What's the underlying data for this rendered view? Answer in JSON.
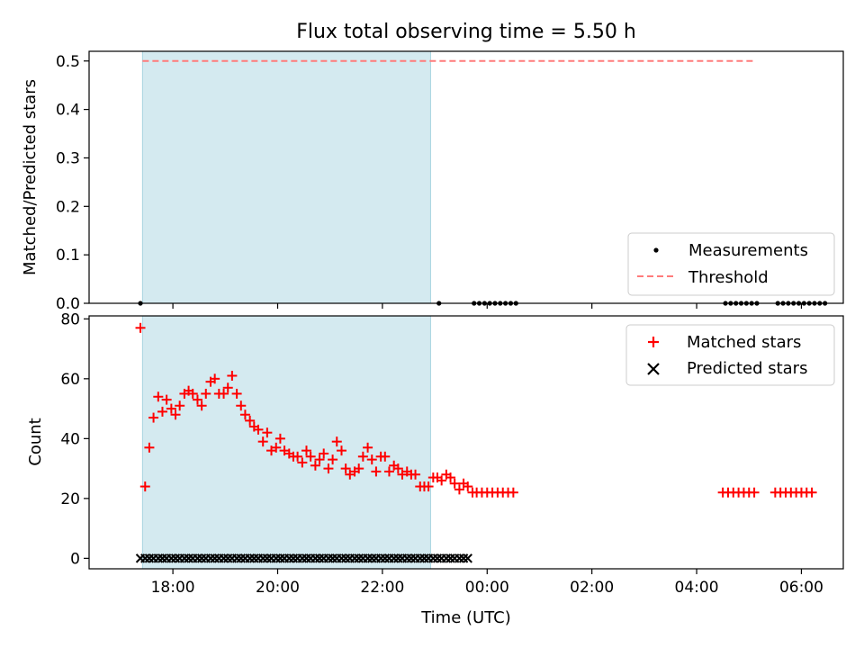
{
  "chart_data": [
    {
      "type": "scatter",
      "title": "Flux total observing time = 5.50 h",
      "xlabel": "",
      "ylabel": "Matched/Predicted stars",
      "xlim": [
        16.4,
        30.8
      ],
      "ylim": [
        0.0,
        0.52
      ],
      "yticks": [
        0.0,
        0.1,
        0.2,
        0.3,
        0.4,
        0.5
      ],
      "ytick_labels": [
        "0.0",
        "0.1",
        "0.2",
        "0.3",
        "0.4",
        "0.5"
      ],
      "xticks": [
        18,
        20,
        22,
        24,
        26,
        28,
        30
      ],
      "shaded_span": [
        17.42,
        22.92
      ],
      "threshold": {
        "value": 0.5,
        "x_range": [
          17.42,
          29.12
        ],
        "color": "#ff7b7b"
      },
      "legend": {
        "position": "lower-right",
        "entries": [
          {
            "label": "Measurements",
            "marker": "dot",
            "color": "#000000"
          },
          {
            "label": "Threshold",
            "marker": "dashed-line",
            "color": "#ff7b7b"
          }
        ]
      },
      "series": [
        {
          "name": "Measurements",
          "marker": "dot",
          "color": "#000000",
          "x": [
            17.38,
            23.08,
            23.75,
            23.85,
            23.95,
            24.05,
            24.15,
            24.25,
            24.35,
            24.45,
            24.55,
            28.55,
            28.65,
            28.75,
            28.85,
            28.95,
            29.05,
            29.15,
            29.55,
            29.65,
            29.75,
            29.85,
            29.95,
            30.05,
            30.15,
            30.25,
            30.35,
            30.45
          ],
          "y": [
            0,
            0,
            0,
            0,
            0,
            0,
            0,
            0,
            0,
            0,
            0,
            0,
            0,
            0,
            0,
            0,
            0,
            0,
            0,
            0,
            0,
            0,
            0,
            0,
            0,
            0,
            0,
            0
          ]
        }
      ]
    },
    {
      "type": "scatter",
      "xlabel": "Time (UTC)",
      "ylabel": "Count",
      "xlim": [
        16.4,
        30.8
      ],
      "ylim": [
        -3.5,
        81
      ],
      "yticks": [
        0,
        20,
        40,
        60,
        80
      ],
      "ytick_labels": [
        "0",
        "20",
        "40",
        "60",
        "80"
      ],
      "xticks": [
        18,
        20,
        22,
        24,
        26,
        28,
        30
      ],
      "xtick_labels": [
        "18:00",
        "20:00",
        "22:00",
        "00:00",
        "02:00",
        "04:00",
        "06:00"
      ],
      "shaded_span": [
        17.42,
        22.92
      ],
      "legend": {
        "position": "top-right",
        "entries": [
          {
            "label": "Matched stars",
            "marker": "plus",
            "color": "#ff0000"
          },
          {
            "label": "Predicted stars",
            "marker": "x",
            "color": "#000000"
          }
        ]
      },
      "series": [
        {
          "name": "Matched stars",
          "marker": "plus",
          "color": "#ff0000",
          "x": [
            17.38,
            17.47,
            17.55,
            17.63,
            17.72,
            17.8,
            17.88,
            17.97,
            18.05,
            18.13,
            18.22,
            18.3,
            18.38,
            18.47,
            18.55,
            18.63,
            18.72,
            18.8,
            18.88,
            18.97,
            19.05,
            19.13,
            19.22,
            19.3,
            19.38,
            19.47,
            19.55,
            19.63,
            19.72,
            19.8,
            19.88,
            19.97,
            20.05,
            20.13,
            20.22,
            20.3,
            20.38,
            20.47,
            20.55,
            20.63,
            20.72,
            20.8,
            20.88,
            20.97,
            21.05,
            21.13,
            21.22,
            21.3,
            21.38,
            21.47,
            21.55,
            21.63,
            21.72,
            21.8,
            21.88,
            21.97,
            22.05,
            22.13,
            22.22,
            22.3,
            22.38,
            22.47,
            22.55,
            22.63,
            22.72,
            22.8,
            22.88,
            22.97,
            23.05,
            23.13,
            23.22,
            23.3,
            23.38,
            23.47,
            23.55,
            23.63,
            23.72,
            23.8,
            23.9,
            24.0,
            24.1,
            24.2,
            24.3,
            24.4,
            24.5,
            28.5,
            28.6,
            28.7,
            28.8,
            28.9,
            29.0,
            29.1,
            29.5,
            29.6,
            29.7,
            29.8,
            29.9,
            30.0,
            30.1,
            30.2
          ],
          "y": [
            77,
            24,
            37,
            47,
            54,
            49,
            53,
            50,
            48,
            51,
            55,
            56,
            55,
            53,
            51,
            55,
            59,
            60,
            55,
            55,
            57,
            61,
            55,
            51,
            48,
            46,
            44,
            43,
            39,
            42,
            36,
            37,
            40,
            36,
            35,
            34,
            34,
            32,
            36,
            34,
            31,
            33,
            35,
            30,
            33,
            39,
            36,
            30,
            28,
            29,
            30,
            34,
            37,
            33,
            29,
            34,
            34,
            29,
            31,
            30,
            28,
            29,
            28,
            28,
            24,
            24,
            24,
            27,
            27,
            26,
            28,
            27,
            25,
            23,
            25,
            24,
            22,
            22,
            22,
            22,
            22,
            22,
            22,
            22,
            22,
            22,
            22,
            22,
            22,
            22,
            22,
            22,
            22,
            22,
            22,
            22,
            22,
            22,
            22,
            22
          ]
        },
        {
          "name": "Predicted stars",
          "marker": "x",
          "color": "#000000",
          "x": [
            17.38,
            17.47,
            17.55,
            17.63,
            17.72,
            17.8,
            17.88,
            17.97,
            18.05,
            18.13,
            18.22,
            18.3,
            18.38,
            18.47,
            18.55,
            18.63,
            18.72,
            18.8,
            18.88,
            18.97,
            19.05,
            19.13,
            19.22,
            19.3,
            19.38,
            19.47,
            19.55,
            19.63,
            19.72,
            19.8,
            19.88,
            19.97,
            20.05,
            20.13,
            20.22,
            20.3,
            20.38,
            20.47,
            20.55,
            20.63,
            20.72,
            20.8,
            20.88,
            20.97,
            21.05,
            21.13,
            21.22,
            21.3,
            21.38,
            21.47,
            21.55,
            21.63,
            21.72,
            21.8,
            21.88,
            21.97,
            22.05,
            22.13,
            22.22,
            22.3,
            22.38,
            22.47,
            22.55,
            22.63,
            22.72,
            22.8,
            22.88,
            22.97,
            23.05,
            23.13,
            23.22,
            23.3,
            23.38,
            23.47,
            23.55,
            23.63
          ],
          "y": [
            0,
            0,
            0,
            0,
            0,
            0,
            0,
            0,
            0,
            0,
            0,
            0,
            0,
            0,
            0,
            0,
            0,
            0,
            0,
            0,
            0,
            0,
            0,
            0,
            0,
            0,
            0,
            0,
            0,
            0,
            0,
            0,
            0,
            0,
            0,
            0,
            0,
            0,
            0,
            0,
            0,
            0,
            0,
            0,
            0,
            0,
            0,
            0,
            0,
            0,
            0,
            0,
            0,
            0,
            0,
            0,
            0,
            0,
            0,
            0,
            0,
            0,
            0,
            0,
            0,
            0,
            0,
            0,
            0,
            0,
            0,
            0,
            0,
            0,
            0,
            0
          ]
        }
      ]
    }
  ],
  "colors": {
    "shade": "#d4eaf0",
    "shade_edge": "#a8d4e0",
    "axis": "#000000"
  }
}
